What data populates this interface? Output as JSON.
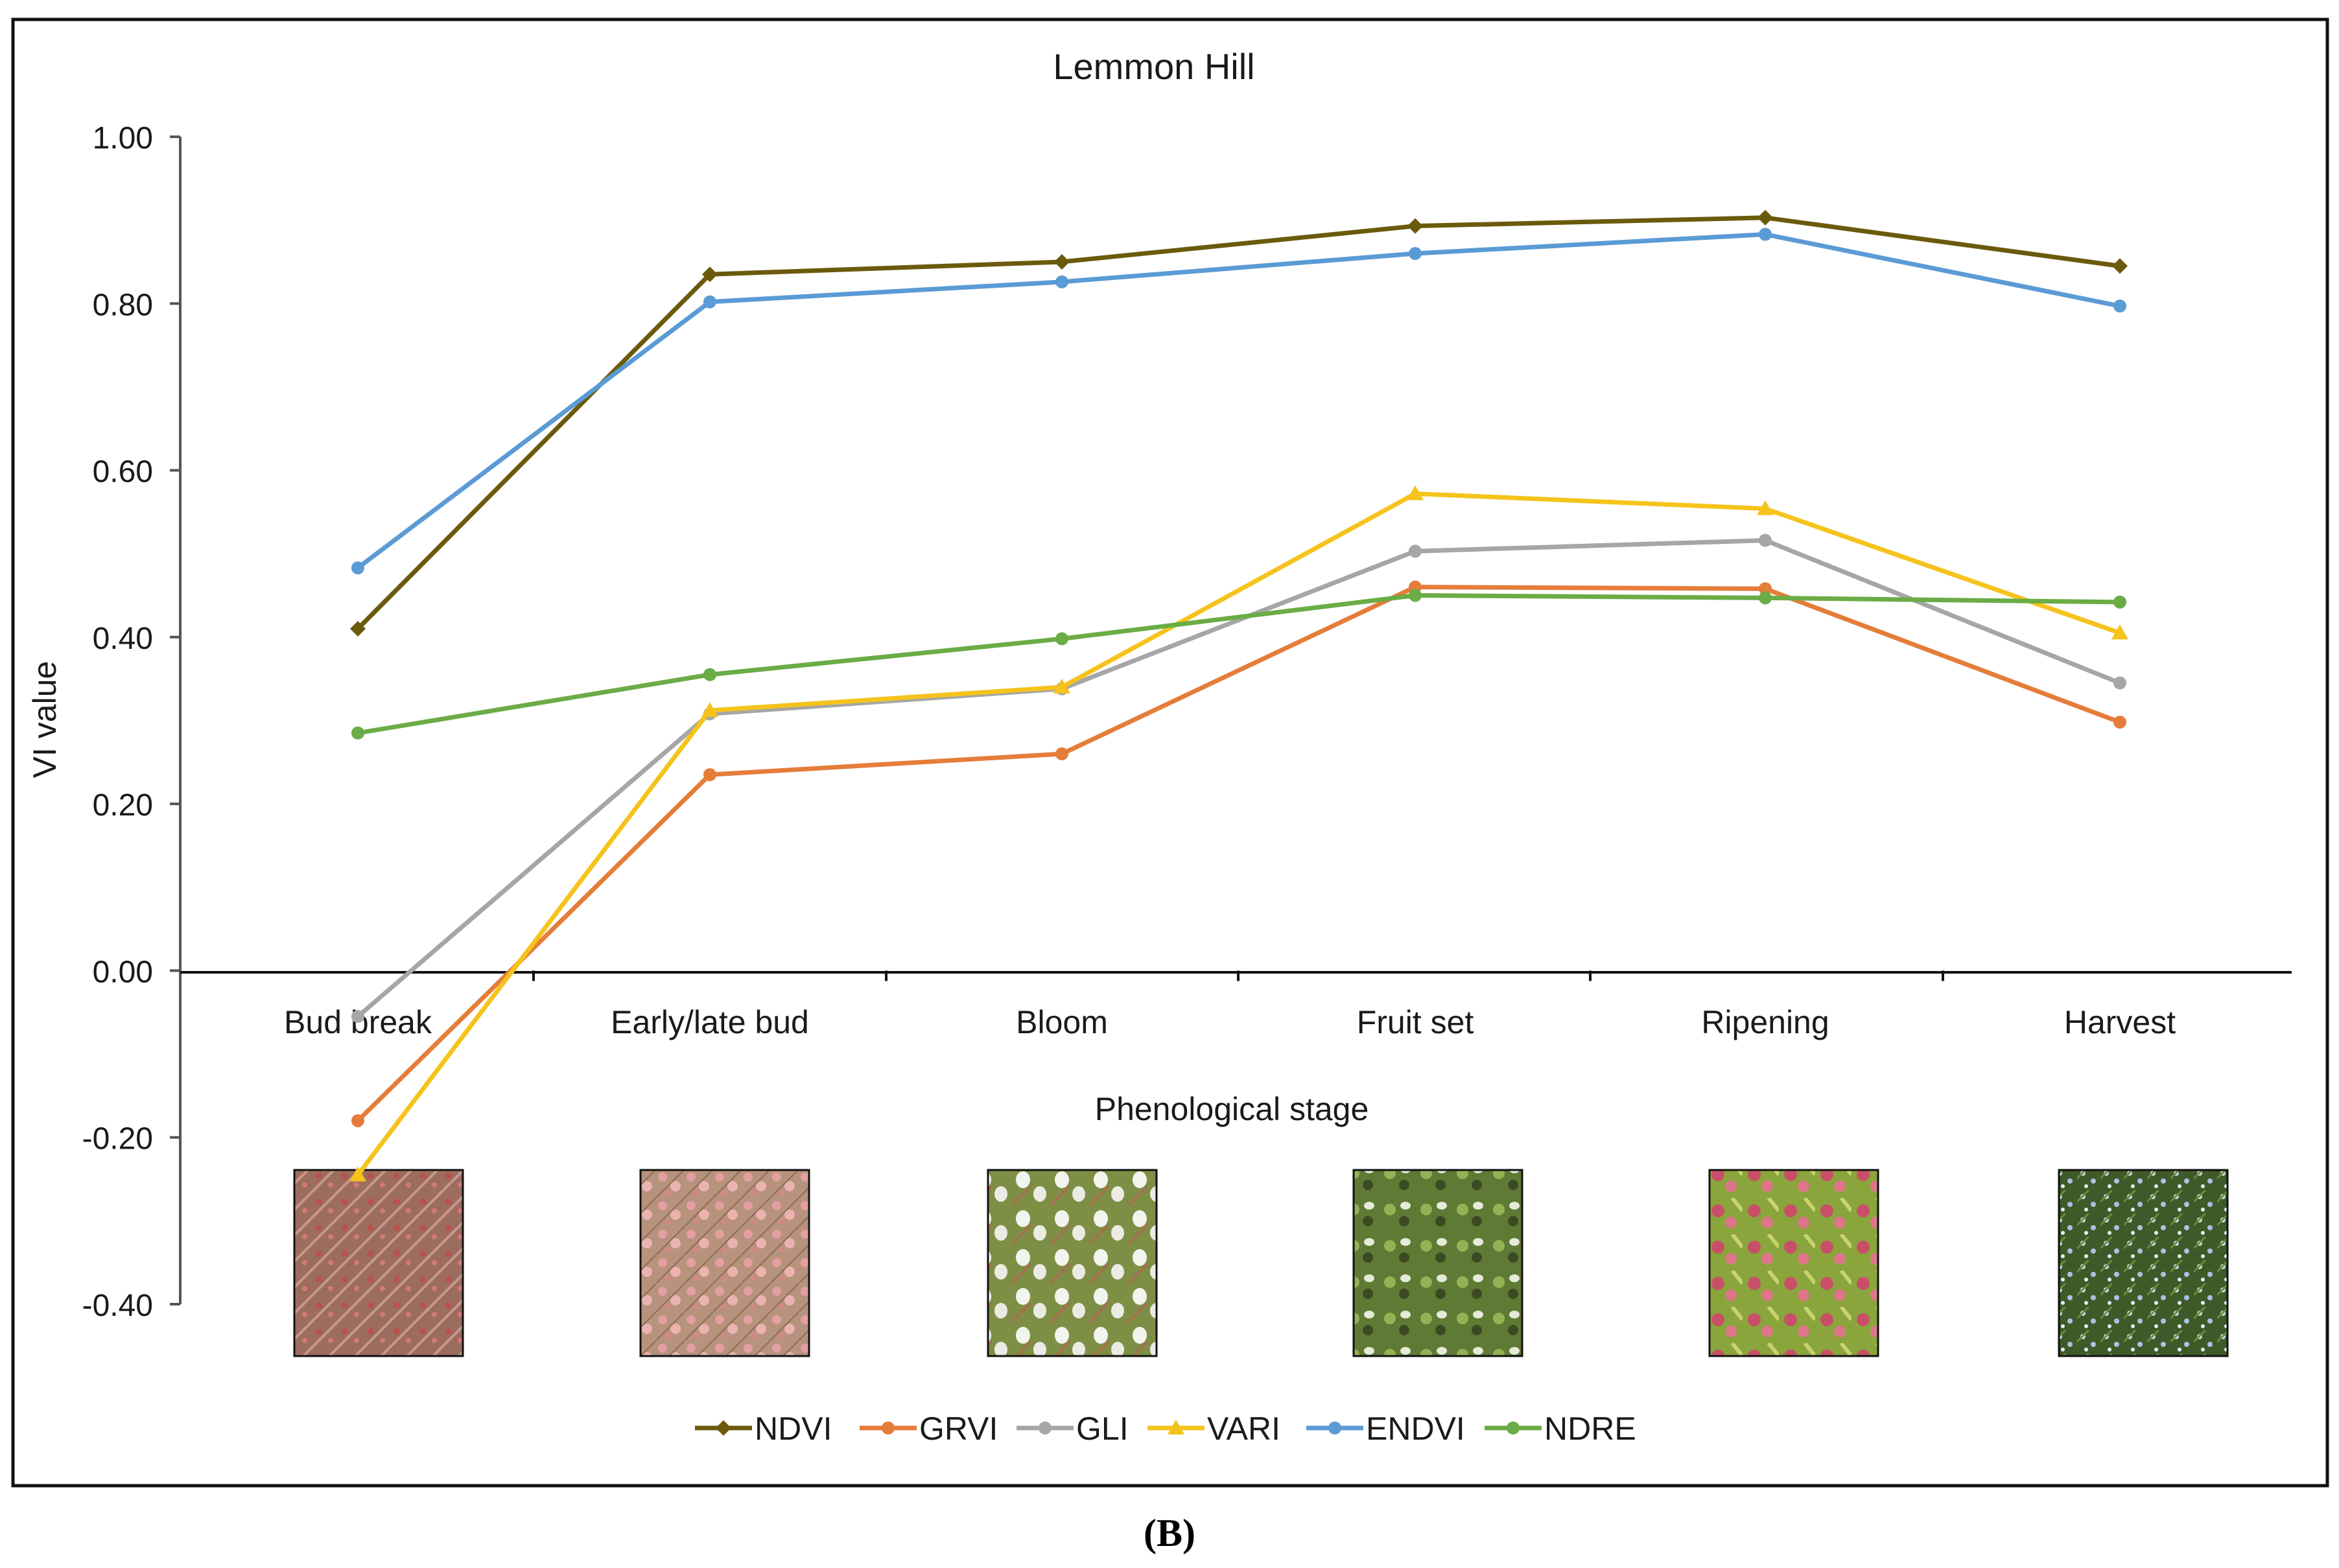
{
  "chart_data": {
    "type": "line",
    "title": "Lemmon Hill",
    "xlabel": "Phenological stage",
    "ylabel": "VI value",
    "ylim": [
      -0.4,
      1.0
    ],
    "yticks": [
      -0.4,
      -0.2,
      0.0,
      0.2,
      0.4,
      0.6,
      0.8,
      1.0
    ],
    "ytick_labels": [
      "-0.40",
      "-0.20",
      "0.00",
      "0.20",
      "0.40",
      "0.60",
      "0.80",
      "1.00"
    ],
    "grid": false,
    "legend_position": "bottom",
    "categories": [
      "Bud break",
      "Early/late bud",
      "Bloom",
      "Fruit set",
      "Ripening",
      "Harvest"
    ],
    "series": [
      {
        "name": "NDVI",
        "color": "#6b5a0c",
        "marker": "diamond",
        "values": [
          0.41,
          0.835,
          0.85,
          0.893,
          0.903,
          0.845
        ]
      },
      {
        "name": "GRVI",
        "color": "#e57d3a",
        "marker": "circle",
        "values": [
          -0.18,
          0.235,
          0.26,
          0.46,
          0.458,
          0.298
        ]
      },
      {
        "name": "GLI",
        "color": "#a6a6a6",
        "marker": "circle",
        "values": [
          -0.055,
          0.308,
          0.338,
          0.503,
          0.516,
          0.345
        ]
      },
      {
        "name": "VARI",
        "color": "#f5c31c",
        "marker": "triangle",
        "values": [
          -0.245,
          0.312,
          0.34,
          0.572,
          0.554,
          0.405
        ]
      },
      {
        "name": "ENDVI",
        "color": "#5a9bd5",
        "marker": "circle",
        "values": [
          0.483,
          0.802,
          0.826,
          0.86,
          0.883,
          0.797
        ]
      },
      {
        "name": "NDRE",
        "color": "#6aac46",
        "marker": "circle",
        "values": [
          0.285,
          0.355,
          0.398,
          0.45,
          0.447,
          0.442
        ]
      }
    ]
  },
  "photos": [
    {
      "stage": "Bud break",
      "icon": "red-buds-photo"
    },
    {
      "stage": "Early/late bud",
      "icon": "pink-buds-photo"
    },
    {
      "stage": "Bloom",
      "icon": "white-flowers-photo"
    },
    {
      "stage": "Fruit set",
      "icon": "green-fruit-photo"
    },
    {
      "stage": "Ripening",
      "icon": "red-berries-photo"
    },
    {
      "stage": "Harvest",
      "icon": "blue-berries-photo"
    }
  ],
  "figure_label": "(B)"
}
